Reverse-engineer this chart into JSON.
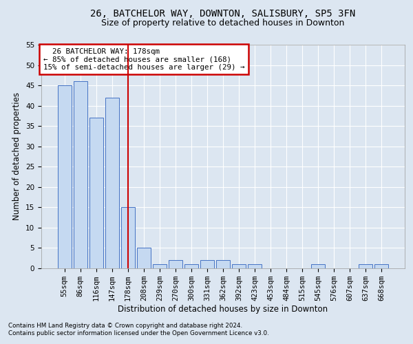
{
  "title_line1": "26, BATCHELOR WAY, DOWNTON, SALISBURY, SP5 3FN",
  "title_line2": "Size of property relative to detached houses in Downton",
  "xlabel": "Distribution of detached houses by size in Downton",
  "ylabel": "Number of detached properties",
  "footnote1": "Contains HM Land Registry data © Crown copyright and database right 2024.",
  "footnote2": "Contains public sector information licensed under the Open Government Licence v3.0.",
  "annotation_line1": "  26 BATCHELOR WAY: 178sqm",
  "annotation_line2": "← 85% of detached houses are smaller (168)",
  "annotation_line3": "15% of semi-detached houses are larger (29) →",
  "bar_labels": [
    "55sqm",
    "86sqm",
    "116sqm",
    "147sqm",
    "178sqm",
    "208sqm",
    "239sqm",
    "270sqm",
    "300sqm",
    "331sqm",
    "362sqm",
    "392sqm",
    "423sqm",
    "453sqm",
    "484sqm",
    "515sqm",
    "545sqm",
    "576sqm",
    "607sqm",
    "637sqm",
    "668sqm"
  ],
  "bar_values": [
    45,
    46,
    37,
    42,
    15,
    5,
    1,
    2,
    1,
    2,
    2,
    1,
    1,
    0,
    0,
    0,
    1,
    0,
    0,
    1,
    1
  ],
  "bar_color": "#c5d9f1",
  "bar_edge_color": "#4472c4",
  "marker_index": 4,
  "marker_color": "#cc0000",
  "ylim": [
    0,
    55
  ],
  "yticks": [
    0,
    5,
    10,
    15,
    20,
    25,
    30,
    35,
    40,
    45,
    50,
    55
  ],
  "background_color": "#dce6f1",
  "plot_bg_color": "#dce6f1",
  "grid_color": "#ffffff",
  "annotation_box_color": "#cc0000",
  "title_fontsize": 10,
  "subtitle_fontsize": 9,
  "tick_fontsize": 7.5,
  "label_fontsize": 8.5
}
